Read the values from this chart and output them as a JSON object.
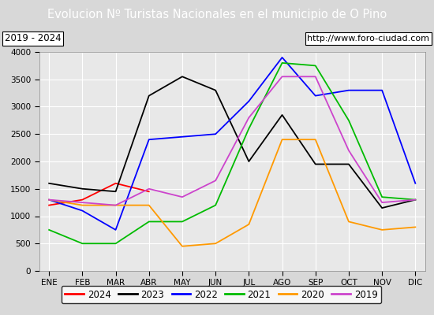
{
  "title": "Evolucion Nº Turistas Nacionales en el municipio de O Pino",
  "subtitle_left": "2019 - 2024",
  "subtitle_right": "http://www.foro-ciudad.com",
  "months": [
    "ENE",
    "FEB",
    "MAR",
    "ABR",
    "MAY",
    "JUN",
    "JUL",
    "AGO",
    "SEP",
    "OCT",
    "NOV",
    "DIC"
  ],
  "ylim": [
    0,
    4000
  ],
  "yticks": [
    0,
    500,
    1000,
    1500,
    2000,
    2500,
    3000,
    3500,
    4000
  ],
  "series": {
    "2024": {
      "color": "#ff0000",
      "values": [
        1200,
        1300,
        1600,
        1450,
        null,
        null,
        null,
        null,
        null,
        null,
        null,
        null
      ]
    },
    "2023": {
      "color": "#000000",
      "values": [
        1600,
        1500,
        1450,
        3200,
        3550,
        3300,
        2000,
        2850,
        1950,
        1950,
        1150,
        1300
      ]
    },
    "2022": {
      "color": "#0000ff",
      "values": [
        1300,
        1100,
        750,
        2400,
        2450,
        2500,
        3100,
        3900,
        3200,
        3300,
        3300,
        1600
      ]
    },
    "2021": {
      "color": "#00bb00",
      "values": [
        750,
        500,
        500,
        900,
        900,
        1200,
        2600,
        3800,
        3750,
        2750,
        1350,
        1300
      ]
    },
    "2020": {
      "color": "#ff9900",
      "values": [
        1300,
        1200,
        1200,
        1200,
        450,
        500,
        850,
        2400,
        2400,
        900,
        750,
        800
      ]
    },
    "2019": {
      "color": "#cc44cc",
      "values": [
        1300,
        1250,
        1200,
        1500,
        1350,
        1650,
        2800,
        3550,
        3550,
        2200,
        1250,
        1300
      ]
    }
  },
  "legend_order": [
    "2024",
    "2023",
    "2022",
    "2021",
    "2020",
    "2019"
  ],
  "title_bg_color": "#4472c4",
  "title_color": "#ffffff",
  "plot_bg_color": "#e8e8e8",
  "outer_bg_color": "#d8d8d8",
  "grid_color": "#ffffff"
}
